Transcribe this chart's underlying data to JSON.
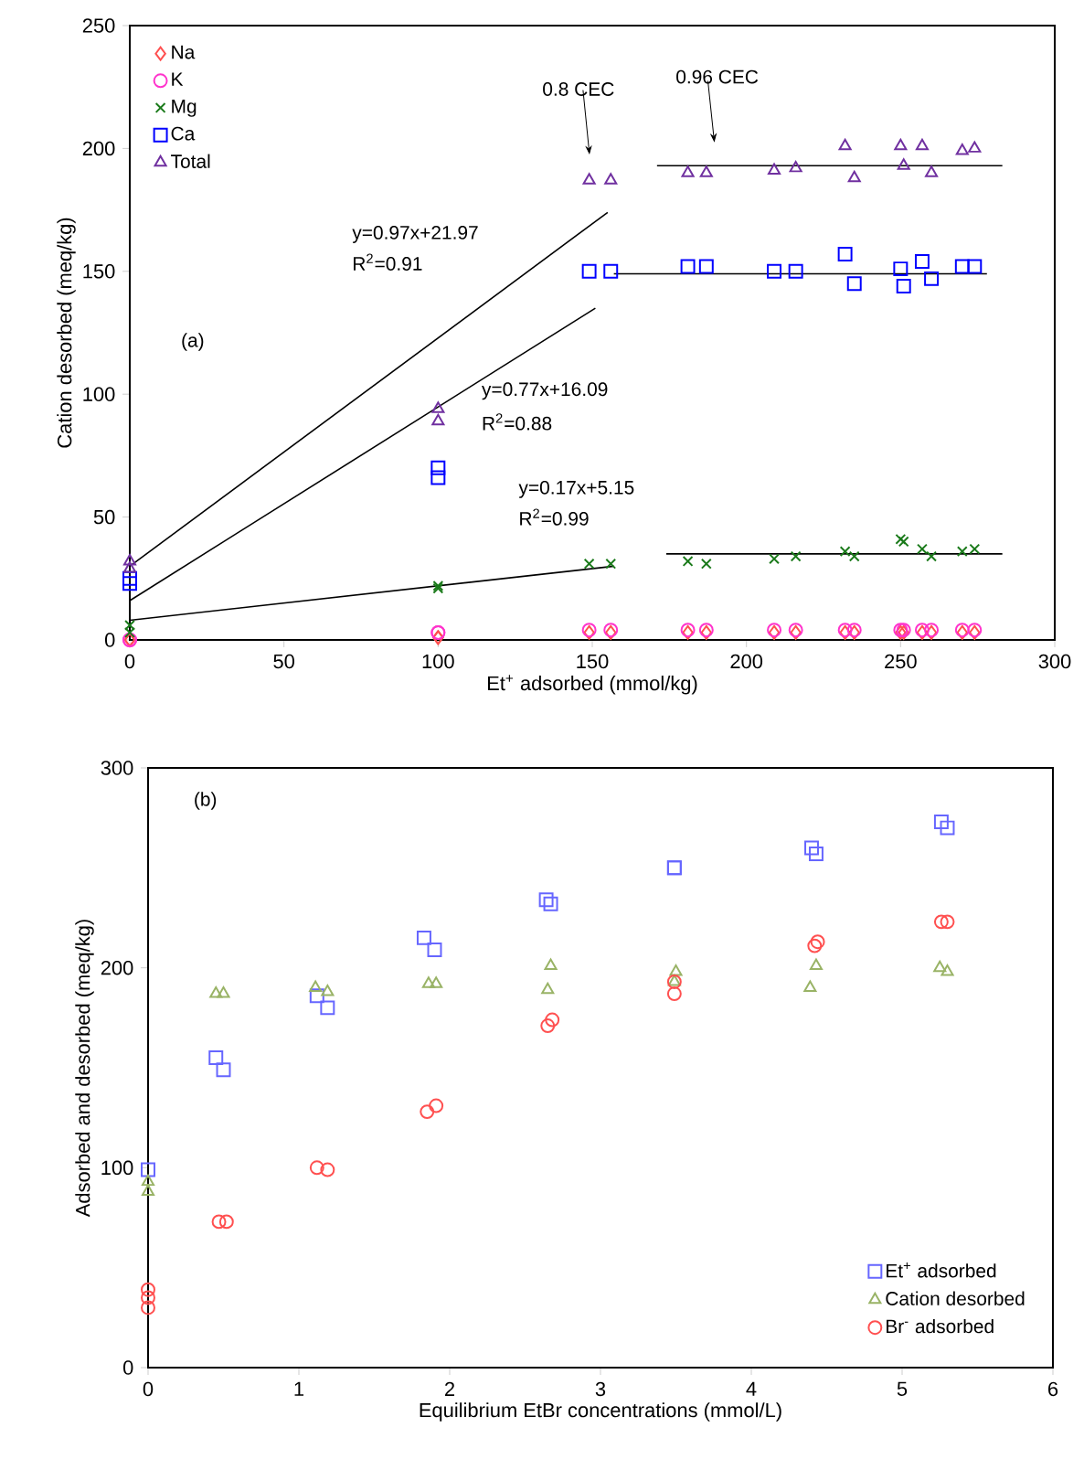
{
  "chart_data": [
    {
      "type": "scatter",
      "xlabel": "Et$^{+}$ adsorbed (mmol/kg)",
      "ylabel": "Cation desorbed (meq/kg)",
      "xlim": [
        0,
        300
      ],
      "ylim": [
        0,
        250
      ],
      "xticks": [
        0,
        50,
        100,
        150,
        200,
        250,
        300
      ],
      "yticks": [
        0,
        50,
        100,
        150,
        200,
        250
      ],
      "grid": false,
      "legend": "top left",
      "x": [
        0,
        0,
        100,
        100,
        149,
        156,
        181,
        187,
        209,
        216,
        232,
        235,
        250,
        251,
        257,
        260,
        270,
        274
      ],
      "series": [
        {
          "name": "Na",
          "color": "#ff5050",
          "marker": "diamond",
          "values": [
            0,
            0,
            1,
            1,
            3,
            3,
            3,
            3,
            3,
            3,
            3,
            3,
            3,
            3,
            3,
            3,
            3,
            3
          ]
        },
        {
          "name": "K",
          "color": "#ff33cc",
          "marker": "circle",
          "values": [
            0,
            0,
            3,
            3,
            4,
            4,
            4,
            4,
            4,
            4,
            4,
            4,
            4,
            4,
            4,
            4,
            4,
            4
          ]
        },
        {
          "name": "Mg",
          "color": "#1a7a1a",
          "marker": "cross",
          "values": [
            6,
            3,
            22,
            21,
            31,
            31,
            32,
            31,
            33,
            34,
            36,
            34,
            41,
            40,
            37,
            34,
            36,
            37
          ]
        },
        {
          "name": "Ca",
          "color": "#0000ff",
          "marker": "square",
          "values": [
            25,
            23,
            70,
            66,
            150,
            150,
            152,
            152,
            150,
            150,
            157,
            145,
            151,
            144,
            154,
            147,
            152,
            152
          ]
        },
        {
          "name": "Total",
          "color": "#7030a0",
          "marker": "triangle",
          "values": [
            32,
            29,
            94,
            89,
            187,
            187,
            190,
            190,
            191,
            192,
            201,
            188,
            201,
            193,
            201,
            190,
            199,
            200
          ]
        },
        {
          "type": "line",
          "color": "#000000",
          "marker": "none",
          "x": [
            0,
            155
          ],
          "values": [
            30,
            174
          ]
        },
        {
          "type": "line",
          "color": "#000000",
          "marker": "none",
          "x": [
            0,
            151
          ],
          "values": [
            16,
            135
          ]
        },
        {
          "type": "line",
          "color": "#000000",
          "marker": "none",
          "x": [
            0,
            157
          ],
          "values": [
            8,
            30
          ]
        },
        {
          "type": "line",
          "color": "#000000",
          "marker": "none",
          "x": [
            171,
            283
          ],
          "values": [
            193,
            193
          ]
        },
        {
          "type": "line",
          "color": "#000000",
          "marker": "none",
          "x": [
            157,
            278
          ],
          "values": [
            149,
            149
          ]
        },
        {
          "type": "line",
          "color": "#000000",
          "marker": "none",
          "x": [
            174,
            283
          ],
          "values": [
            35,
            35
          ]
        }
      ],
      "annotations": [
        "(a)",
        "y=0.97x+21.97",
        "R$^{2}$=0.91",
        "y=0.77x+16.09",
        "R$^{2}$=0.88",
        "y=0.17x+5.15",
        "R$^{2}$=0.99",
        "0.8 CEC",
        "0.96 CEC"
      ]
    },
    {
      "type": "scatter",
      "xlabel": "Equilibrium EtBr concentrations (mmol/L)",
      "ylabel": "Adsorbed and desorbed (meq/kg)",
      "xlim": [
        0,
        6
      ],
      "ylim": [
        0,
        300
      ],
      "xticks": [
        0,
        1,
        2,
        3,
        4,
        5,
        6
      ],
      "yticks": [
        0,
        100,
        200,
        300
      ],
      "grid": false,
      "legend": "bottom right",
      "series": [
        {
          "name": "Et$^{+}$ adsorbed",
          "color": "#6666ff",
          "marker": "square",
          "x": [
            0,
            0.45,
            0.5,
            1.12,
            1.19,
            1.83,
            1.9,
            2.64,
            2.67,
            3.49,
            3.49,
            4.4,
            4.43,
            5.26,
            5.3
          ],
          "values": [
            99,
            155,
            149,
            186,
            180,
            215,
            209,
            234,
            232,
            250,
            250,
            260,
            257,
            273,
            270
          ]
        },
        {
          "name": "Cation desorbed",
          "color": "#99b366",
          "marker": "triangle",
          "x": [
            0,
            0,
            0.45,
            0.5,
            1.11,
            1.19,
            1.86,
            1.91,
            2.67,
            2.65,
            3.5,
            3.49,
            4.43,
            4.39,
            5.25,
            5.3
          ],
          "values": [
            93,
            88,
            187,
            187,
            190,
            188,
            192,
            192,
            201,
            189,
            198,
            193,
            201,
            190,
            200,
            198
          ]
        },
        {
          "name": "Br$^{-}$ adsorbed",
          "color": "#ff5050",
          "marker": "circle",
          "x": [
            0,
            0,
            0,
            0.47,
            0.52,
            1.12,
            1.19,
            1.85,
            1.91,
            2.65,
            2.68,
            3.49,
            3.49,
            4.42,
            4.44,
            5.26,
            5.3
          ],
          "values": [
            39,
            35,
            30,
            73,
            73,
            100,
            99,
            128,
            131,
            171,
            174,
            187,
            193,
            211,
            213,
            223,
            223
          ]
        }
      ],
      "annotations": [
        "(b)"
      ]
    }
  ]
}
